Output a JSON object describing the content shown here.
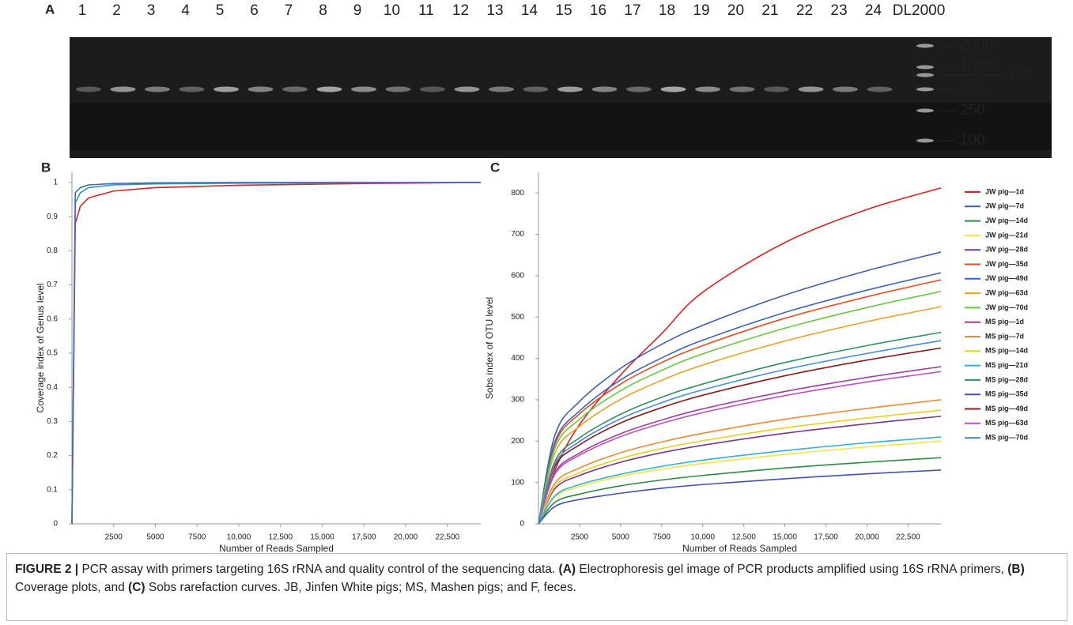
{
  "figure": {
    "panel_labels": [
      "A",
      "B",
      "C"
    ],
    "gel": {
      "lanes": [
        "1",
        "2",
        "3",
        "4",
        "5",
        "6",
        "7",
        "8",
        "9",
        "10",
        "11",
        "12",
        "13",
        "14",
        "15",
        "16",
        "17",
        "18",
        "19",
        "20",
        "21",
        "22",
        "23",
        "24",
        "DL2000"
      ],
      "markers": [
        "2000",
        "1000",
        "750",
        "500",
        "250",
        "100"
      ]
    },
    "caption": [
      {
        "text": "FIGURE 2 |",
        "bold": true
      },
      {
        "text": " PCR assay with primers targeting 16S rRNA and quality control of the sequencing data. "
      },
      {
        "text": "(A)",
        "bold": true
      },
      {
        "text": " Electrophoresis gel image of PCR products amplified using 16S rRNA primers, "
      },
      {
        "text": "(B)",
        "bold": true
      },
      {
        "text": " Coverage plots, and "
      },
      {
        "text": "(C)",
        "bold": true
      },
      {
        "text": " Sobs rarefaction curves. JB, Jinfen White pigs; MS, Mashen pigs; and F, feces."
      }
    ]
  },
  "chart_data": [
    {
      "type": "line",
      "xlabel": "Number of Reads Sampled",
      "ylabel": "Coverage index of Genus level",
      "x": [
        0,
        200,
        500,
        1000,
        2500,
        5000,
        10000,
        17500,
        24500
      ],
      "xlim": [
        0,
        24500
      ],
      "ylim": [
        0,
        1.03
      ],
      "xticks": [
        2500,
        5000,
        7500,
        {
          "value": 10000,
          "label": "10,000"
        },
        {
          "value": 12500,
          "label": "12,500"
        },
        {
          "value": 15000,
          "label": "15,000"
        },
        {
          "value": 17500,
          "label": "17,500"
        },
        {
          "value": 20000,
          "label": "20,000"
        },
        {
          "value": 22500,
          "label": "22,500"
        }
      ],
      "yticks": [
        0,
        0.1,
        0.2,
        0.3,
        0.4,
        0.5,
        0.6,
        0.7,
        0.8,
        0.9,
        1
      ],
      "series": [
        {
          "color": "#e02020",
          "values": [
            0,
            0.88,
            0.93,
            0.955,
            0.975,
            0.985,
            0.992,
            0.997,
            1
          ]
        },
        {
          "color": "#2c9ca0",
          "values": [
            0,
            0.94,
            0.97,
            0.985,
            0.993,
            0.996,
            0.998,
            0.999,
            1
          ]
        },
        {
          "color": "#4466c0",
          "values": [
            0,
            0.97,
            0.985,
            0.993,
            0.997,
            0.999,
            1,
            1,
            1
          ]
        }
      ]
    },
    {
      "type": "line",
      "xlabel": "Number of Reads Sampled",
      "ylabel": "Sobs index of OTU level",
      "legend": "right",
      "x": [
        0,
        1000,
        2500,
        5000,
        7500,
        10000,
        15000,
        20000,
        24500
      ],
      "xlim": [
        0,
        24500
      ],
      "ylim": [
        0,
        850
      ],
      "xticks": [
        2500,
        5000,
        7500,
        {
          "value": 10000,
          "label": "10,000"
        },
        {
          "value": 12500,
          "label": "12,500"
        },
        {
          "value": 15000,
          "label": "15,000"
        },
        {
          "value": 17500,
          "label": "17,500"
        },
        {
          "value": 20000,
          "label": "20,000"
        },
        {
          "value": 22500,
          "label": "22,500"
        }
      ],
      "yticks": [
        0,
        100,
        200,
        300,
        400,
        500,
        600,
        700,
        800
      ],
      "series": [
        {
          "name": "JW pig—1d",
          "color": "#e02020",
          "values": [
            0,
            130,
            240,
            360,
            460,
            560,
            680,
            760,
            812
          ]
        },
        {
          "name": "JW pig—7d",
          "color": "#3f5fb0",
          "values": [
            0,
            214,
            296,
            376,
            434,
            480,
            553,
            612,
            657
          ]
        },
        {
          "name": "JW pig—14d",
          "color": "#2e8b3e",
          "values": [
            0,
            52,
            72,
            92,
            106,
            117,
            135,
            149,
            160
          ]
        },
        {
          "name": "JW pig—21d",
          "color": "#f2e63a",
          "values": [
            0,
            65,
            90,
            115,
            132,
            146,
            168,
            186,
            200
          ]
        },
        {
          "name": "JW pig—28d",
          "color": "#7a3590",
          "values": [
            0,
            85,
            117,
            149,
            172,
            190,
            219,
            242,
            260
          ]
        },
        {
          "name": "JW pig—35d",
          "color": "#f04a1c",
          "values": [
            0,
            192,
            266,
            338,
            390,
            431,
            497,
            549,
            590
          ]
        },
        {
          "name": "JW pig—49d",
          "color": "#3a63c0",
          "values": [
            0,
            198,
            273,
            348,
            401,
            444,
            511,
            565,
            607
          ]
        },
        {
          "name": "JW pig—63d",
          "color": "#f0a020",
          "values": [
            0,
            171,
            236,
            301,
            347,
            384,
            442,
            489,
            525
          ]
        },
        {
          "name": "JW pig—70d",
          "color": "#68c840",
          "values": [
            0,
            183,
            253,
            322,
            371,
            411,
            473,
            523,
            562
          ]
        },
        {
          "name": "MS pig—1d",
          "color": "#a040a0",
          "values": [
            0,
            124,
            171,
            218,
            251,
            278,
            320,
            354,
            380
          ]
        },
        {
          "name": "MS pig—7d",
          "color": "#f08a30",
          "values": [
            0,
            98,
            135,
            172,
            198,
            219,
            253,
            279,
            300
          ]
        },
        {
          "name": "MS pig—14d",
          "color": "#e8d020",
          "values": [
            0,
            90,
            124,
            158,
            182,
            201,
            232,
            256,
            275
          ]
        },
        {
          "name": "MS pig—21d",
          "color": "#30b0d8",
          "values": [
            0,
            68,
            95,
            120,
            139,
            154,
            177,
            196,
            210
          ]
        },
        {
          "name": "MS pig—28d",
          "color": "#2f8f5f",
          "values": [
            0,
            151,
            208,
            265,
            306,
            338,
            390,
            431,
            463
          ]
        },
        {
          "name": "MS pig—35d",
          "color": "#4050b0",
          "values": [
            0,
            42,
            59,
            74,
            86,
            95,
            109,
            121,
            130
          ]
        },
        {
          "name": "MS pig—49d",
          "color": "#8b1a1a",
          "values": [
            0,
            139,
            191,
            244,
            281,
            311,
            358,
            396,
            425
          ]
        },
        {
          "name": "MS pig—63d",
          "color": "#c050c0",
          "values": [
            0,
            120,
            166,
            211,
            243,
            269,
            310,
            343,
            368
          ]
        },
        {
          "name": "MS pig—70d",
          "color": "#4a8ad8",
          "values": [
            0,
            144,
            199,
            254,
            293,
            324,
            373,
            412,
            443
          ]
        }
      ]
    }
  ]
}
